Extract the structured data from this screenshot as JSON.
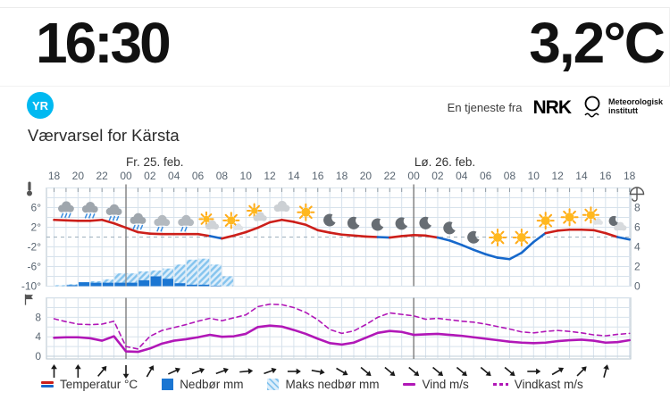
{
  "header": {
    "clock": "16:30",
    "temperature": "3,2°C"
  },
  "brand": {
    "yr_logo_text": "YR",
    "service_text": "En tjeneste fra",
    "nrk_logo_text": "NRK",
    "met_name_line1": "Meteorologisk",
    "met_name_line2": "institutt"
  },
  "title": "Værvarsel for Kärsta",
  "colors": {
    "accent_yr": "#00b9f1",
    "temp_above": "#cc1f1a",
    "temp_below": "#1668cb",
    "precip": "#1b76d2",
    "precip_max_stripe": "#85c4ee",
    "wind": "#b117b7",
    "grid": "#d7e2ec",
    "plot_border": "#b6c3cd",
    "axis_text": "#5a6672"
  },
  "chart_data": {
    "type": "meteogram",
    "hours_span": 48,
    "day_labels": [
      {
        "label": "Fr. 25. feb.",
        "hour": 8.4
      },
      {
        "label": "Lø. 26. feb.",
        "hour": 32.6
      }
    ],
    "hour_labels": [
      "18",
      "20",
      "22",
      "00",
      "02",
      "04",
      "06",
      "08",
      "10",
      "12",
      "14",
      "16",
      "18",
      "20",
      "22",
      "00",
      "02",
      "04",
      "06",
      "08",
      "10",
      "12",
      "14",
      "16",
      "18"
    ],
    "midnight_hours": [
      6,
      30
    ],
    "temp_axis": {
      "ticks": [
        "6°",
        "2°",
        "-2°",
        "-6°",
        "-10°"
      ],
      "tick_values": [
        6,
        2,
        -2,
        -6,
        -10
      ],
      "max": 10,
      "min": -10,
      "zero_line": "dashed"
    },
    "precip_axis": {
      "ticks": [
        "8",
        "6",
        "4",
        "2",
        "0"
      ],
      "tick_values": [
        8,
        6,
        4,
        2,
        0
      ]
    },
    "wind_axis": {
      "ticks": [
        "8",
        "4",
        "0"
      ],
      "tick_values": [
        8,
        4,
        0
      ]
    },
    "temperature": {
      "name": "Temperatur °C",
      "values": [
        3.5,
        3.4,
        3.3,
        3.3,
        3.5,
        2.8,
        1.9,
        1.0,
        0.7,
        0.6,
        0.6,
        0.6,
        0.6,
        0.2,
        -0.3,
        0.3,
        1.0,
        1.9,
        3.0,
        3.5,
        3.1,
        2.5,
        1.4,
        0.9,
        0.5,
        0.3,
        0.1,
        0.0,
        -0.1,
        0.2,
        0.4,
        0.3,
        -0.1,
        -0.7,
        -1.6,
        -2.6,
        -3.5,
        -4.2,
        -4.5,
        -3.2,
        -1.0,
        0.8,
        1.3,
        1.5,
        1.5,
        1.4,
        0.8,
        0.0,
        -0.5
      ]
    },
    "precipitation": {
      "name": "Nedbør mm",
      "values": [
        0,
        0.1,
        0.4,
        0.35,
        0.35,
        0.35,
        0.35,
        0.6,
        1.0,
        0.75,
        0.3,
        0.15,
        0.15,
        0.05,
        0,
        0,
        0,
        0,
        0,
        0,
        0,
        0,
        0,
        0,
        0,
        0,
        0,
        0,
        0,
        0,
        0,
        0,
        0,
        0,
        0,
        0,
        0,
        0,
        0,
        0,
        0,
        0,
        0,
        0,
        0,
        0,
        0,
        0,
        0
      ]
    },
    "max_precipitation": {
      "name": "Maks nedbør mm",
      "values": [
        0.1,
        0.2,
        0.4,
        0.5,
        0.7,
        1.3,
        1.3,
        1.5,
        1.6,
        1.8,
        2.2,
        2.7,
        2.8,
        2.2,
        1.0,
        0,
        0,
        0,
        0,
        0,
        0,
        0,
        0,
        0,
        0,
        0,
        0,
        0,
        0,
        0,
        0,
        0,
        0,
        0,
        0,
        0,
        0,
        0,
        0,
        0,
        0,
        0,
        0,
        0,
        0,
        0,
        0,
        0,
        0
      ]
    },
    "wind": {
      "name": "Vind m/s",
      "values": [
        3.8,
        3.9,
        3.9,
        3.7,
        3.2,
        4.1,
        1.0,
        0.9,
        1.6,
        2.6,
        3.2,
        3.5,
        3.9,
        4.4,
        4.0,
        4.1,
        4.6,
        6.0,
        6.3,
        6.1,
        5.4,
        4.6,
        3.6,
        2.7,
        2.4,
        2.8,
        3.8,
        4.8,
        5.2,
        5.0,
        4.4,
        4.5,
        4.6,
        4.4,
        4.2,
        3.9,
        3.6,
        3.3,
        3.0,
        2.8,
        2.7,
        2.8,
        3.1,
        3.3,
        3.4,
        3.2,
        2.8,
        2.9,
        3.3
      ]
    },
    "gusts": {
      "name": "Vindkast m/s",
      "values": [
        7.7,
        7.1,
        6.6,
        6.5,
        6.6,
        7.2,
        2.0,
        1.5,
        4.1,
        5.3,
        5.9,
        6.5,
        7.2,
        7.8,
        7.3,
        7.9,
        8.5,
        10.2,
        10.7,
        10.6,
        10.0,
        9.0,
        7.5,
        5.5,
        4.7,
        5.2,
        6.5,
        8.0,
        8.9,
        8.6,
        8.3,
        7.6,
        7.8,
        7.5,
        7.2,
        7.0,
        6.6,
        6.1,
        5.6,
        5.0,
        4.8,
        5.1,
        5.3,
        5.1,
        4.8,
        4.4,
        4.2,
        4.5,
        4.7
      ]
    },
    "wind_directions_deg": [
      0,
      0,
      40,
      180,
      30,
      65,
      70,
      70,
      85,
      70,
      90,
      100,
      120,
      130,
      130,
      130,
      130,
      130,
      130,
      130,
      90,
      60,
      45,
      15
    ],
    "weather_icons": [
      {
        "hour": 1,
        "type": "rain"
      },
      {
        "hour": 3,
        "type": "rain"
      },
      {
        "hour": 5,
        "type": "rain"
      },
      {
        "hour": 7,
        "type": "rain"
      },
      {
        "hour": 9,
        "type": "lightrain"
      },
      {
        "hour": 11,
        "type": "lightrain"
      },
      {
        "hour": 13,
        "type": "partly-sun"
      },
      {
        "hour": 15,
        "type": "sun-cloud"
      },
      {
        "hour": 17,
        "type": "partly-sun"
      },
      {
        "hour": 19,
        "type": "cloud"
      },
      {
        "hour": 21,
        "type": "sun"
      },
      {
        "hour": 23,
        "type": "moon"
      },
      {
        "hour": 25,
        "type": "moon"
      },
      {
        "hour": 27,
        "type": "moon"
      },
      {
        "hour": 29,
        "type": "moon"
      },
      {
        "hour": 31,
        "type": "moon"
      },
      {
        "hour": 33,
        "type": "moon"
      },
      {
        "hour": 35,
        "type": "moon"
      },
      {
        "hour": 37,
        "type": "sun"
      },
      {
        "hour": 39,
        "type": "sun"
      },
      {
        "hour": 41,
        "type": "sun"
      },
      {
        "hour": 43,
        "type": "sun"
      },
      {
        "hour": 45,
        "type": "sun-cloud"
      },
      {
        "hour": 47,
        "type": "moon-cloud"
      }
    ]
  },
  "legend": [
    {
      "type": "temperature",
      "label": "Temperatur °C"
    },
    {
      "type": "precip",
      "label": "Nedbør mm"
    },
    {
      "type": "max-precip",
      "label": "Maks nedbør mm"
    },
    {
      "type": "wind",
      "label": "Vind m/s"
    },
    {
      "type": "gusts",
      "label": "Vindkast m/s"
    }
  ]
}
